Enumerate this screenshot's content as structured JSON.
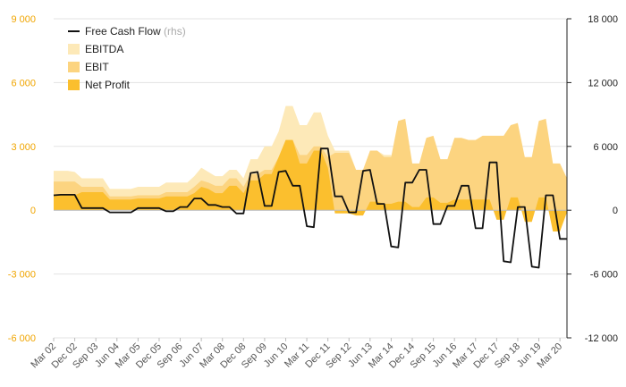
{
  "chart_data": {
    "type": "area",
    "title": "",
    "xlabel": "",
    "ylabel": "",
    "ylim": [
      -6000,
      9000
    ],
    "y2lim": [
      -12000,
      18000
    ],
    "yticks": [
      "9 000",
      "6 000",
      "3 000",
      "0",
      "-3 000",
      "-6 000"
    ],
    "y2ticks": [
      "18 000",
      "12 000",
      "6 000",
      "0",
      "-6 000",
      "-12 000"
    ],
    "xtick_labels": [
      "Mar 02",
      "Dec 02",
      "Sep 03",
      "Jun 04",
      "Mar 05",
      "Dec 05",
      "Sep 06",
      "Jun 07",
      "Mar 08",
      "Dec 08",
      "Sep 09",
      "Jun 10",
      "Mar 11",
      "Dec 11",
      "Sep 12",
      "Jun 13",
      "Mar 14",
      "Dec 14",
      "Sep 15",
      "Jun 16",
      "Mar 17",
      "Dec 17",
      "Sep 18",
      "Jun 19",
      "Mar 20"
    ],
    "x": [
      "Mar 02",
      "Jun 02",
      "Sep 02",
      "Dec 02",
      "Mar 03",
      "Jun 03",
      "Sep 03",
      "Dec 03",
      "Mar 04",
      "Jun 04",
      "Sep 04",
      "Dec 04",
      "Mar 05",
      "Jun 05",
      "Sep 05",
      "Dec 05",
      "Mar 06",
      "Jun 06",
      "Sep 06",
      "Dec 06",
      "Mar 07",
      "Jun 07",
      "Sep 07",
      "Dec 07",
      "Mar 08",
      "Jun 08",
      "Sep 08",
      "Dec 08",
      "Mar 09",
      "Jun 09",
      "Sep 09",
      "Dec 09",
      "Mar 10",
      "Jun 10",
      "Sep 10",
      "Dec 10",
      "Mar 11",
      "Jun 11",
      "Sep 11",
      "Dec 11",
      "Mar 12",
      "Jun 12",
      "Sep 12",
      "Dec 12",
      "Mar 13",
      "Jun 13",
      "Sep 13",
      "Dec 13",
      "Mar 14",
      "Jun 14",
      "Sep 14",
      "Dec 14",
      "Mar 15",
      "Jun 15",
      "Sep 15",
      "Dec 15",
      "Mar 16",
      "Jun 16",
      "Sep 16",
      "Dec 16",
      "Mar 17",
      "Jun 17",
      "Sep 17",
      "Dec 17",
      "Mar 18",
      "Jun 18",
      "Sep 18",
      "Dec 18",
      "Mar 19",
      "Jun 19",
      "Sep 19",
      "Dec 19",
      "Mar 20",
      "Jun 20"
    ],
    "legend_position": "top-left",
    "grid": true,
    "series": [
      {
        "name": "EBITDA",
        "axis": "left",
        "color": "#fde9b8",
        "values": [
          1850,
          1850,
          1850,
          1800,
          1500,
          1500,
          1500,
          1500,
          1000,
          1000,
          1000,
          1000,
          1100,
          1100,
          1100,
          1100,
          1300,
          1300,
          1300,
          1300,
          1600,
          2000,
          1800,
          1600,
          1600,
          1900,
          1900,
          1500,
          2400,
          2400,
          3000,
          3000,
          3700,
          4900,
          4900,
          4000,
          4000,
          4600,
          4600,
          3500,
          2800,
          2800,
          2800,
          1900,
          1900,
          2800,
          2800,
          2600,
          2600,
          1500,
          1500,
          2100,
          2100,
          1700,
          1700,
          1600,
          1600,
          1700,
          1700,
          1600,
          1600,
          1400,
          1400,
          1400,
          1400,
          1900,
          1900,
          1300,
          1300,
          2000,
          2000,
          1400,
          1400,
          1600
        ]
      },
      {
        "name": "EBIT",
        "axis": "left",
        "color": "#fcd480",
        "values": [
          1350,
          1350,
          1350,
          1350,
          1100,
          1100,
          1100,
          1100,
          650,
          650,
          650,
          650,
          700,
          700,
          700,
          700,
          850,
          850,
          850,
          850,
          1100,
          1400,
          1300,
          1150,
          1150,
          1500,
          1500,
          1100,
          1700,
          1700,
          1900,
          1900,
          2500,
          3300,
          3300,
          2600,
          2600,
          3000,
          3000,
          2500,
          2700,
          2700,
          2700,
          1900,
          1900,
          2800,
          2800,
          2500,
          2500,
          4200,
          4300,
          2200,
          2200,
          3400,
          3500,
          2400,
          2400,
          3400,
          3400,
          3300,
          3300,
          3500,
          3500,
          3500,
          3500,
          4000,
          4100,
          2500,
          2500,
          4200,
          4300,
          2200,
          2200,
          1500
        ]
      },
      {
        "name": "Net Profit",
        "axis": "left",
        "color": "#fbbf2e",
        "values": [
          700,
          700,
          700,
          700,
          850,
          850,
          850,
          850,
          500,
          500,
          500,
          500,
          550,
          550,
          550,
          550,
          650,
          650,
          650,
          650,
          800,
          1100,
          1000,
          800,
          800,
          1150,
          1150,
          800,
          1400,
          1400,
          1700,
          1700,
          2500,
          3300,
          3300,
          2200,
          2200,
          2800,
          2800,
          2000,
          -150,
          -150,
          -150,
          -250,
          -250,
          400,
          400,
          300,
          300,
          400,
          400,
          150,
          150,
          600,
          600,
          350,
          350,
          500,
          500,
          500,
          500,
          500,
          500,
          -450,
          -450,
          600,
          600,
          -550,
          -550,
          600,
          600,
          -1000,
          -1000,
          -100
        ]
      },
      {
        "name": "Free Cash Flow",
        "note": "(rhs)",
        "axis": "right",
        "color": "#111111",
        "values": [
          1400,
          1450,
          1450,
          1450,
          200,
          200,
          200,
          200,
          -200,
          -200,
          -200,
          -200,
          200,
          200,
          200,
          200,
          -100,
          -100,
          300,
          300,
          1100,
          1100,
          500,
          500,
          300,
          300,
          -300,
          -300,
          3500,
          3600,
          400,
          400,
          3600,
          3700,
          2300,
          2300,
          -1500,
          -1600,
          5800,
          5800,
          1300,
          1300,
          -200,
          -200,
          3700,
          3800,
          600,
          600,
          -3400,
          -3500,
          2600,
          2600,
          3800,
          3800,
          -1300,
          -1300,
          400,
          400,
          2300,
          2300,
          -1700,
          -1700,
          4500,
          4500,
          -4800,
          -4900,
          300,
          300,
          -5300,
          -5400,
          1400,
          1400,
          -2700,
          -2700
        ]
      }
    ]
  }
}
